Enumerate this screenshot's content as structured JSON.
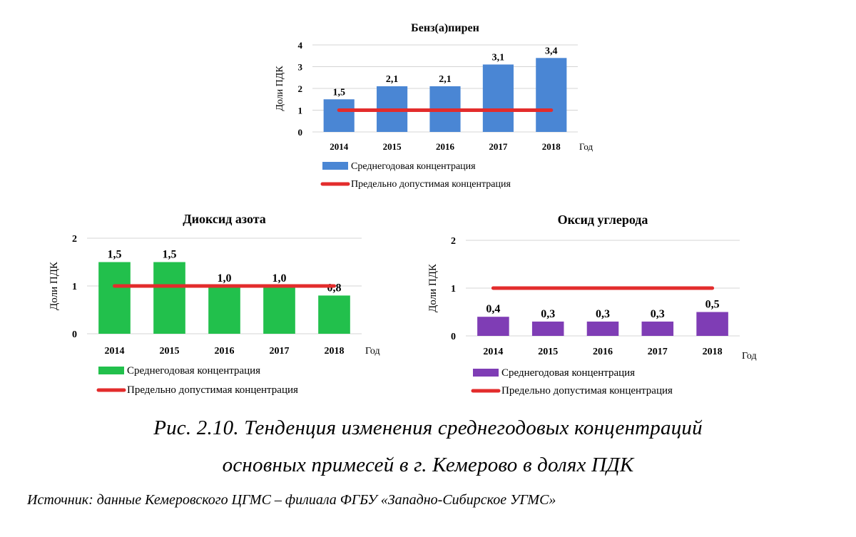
{
  "chart_data": [
    {
      "type": "bar",
      "title": "Бенз(а)пирен",
      "ylabel": "Доли ПДК",
      "xlabel": "Год",
      "categories": [
        "2014",
        "2015",
        "2016",
        "2017",
        "2018"
      ],
      "series": [
        {
          "name": "Среднегодовая концентрация",
          "values": [
            1.5,
            2.1,
            2.1,
            3.1,
            3.4
          ],
          "labels": [
            "1,5",
            "2,1",
            "2,1",
            "3,1",
            "3,4"
          ],
          "color": "#4a86d4"
        },
        {
          "name": "Предельно допустимая концентрация",
          "kind": "line",
          "value": 1,
          "color": "#e32c2c"
        }
      ],
      "ylim": [
        0,
        4
      ],
      "yticks": [
        "0",
        "1",
        "2",
        "3",
        "4"
      ],
      "grid": true,
      "legend": "bottom"
    },
    {
      "type": "bar",
      "title": "Диоксид азота",
      "ylabel": "Доли ПДК",
      "xlabel": "Год",
      "categories": [
        "2014",
        "2015",
        "2016",
        "2017",
        "2018"
      ],
      "series": [
        {
          "name": "Среднегодовая концентрация",
          "values": [
            1.5,
            1.5,
            1.0,
            1.0,
            0.8
          ],
          "labels": [
            "1,5",
            "1,5",
            "1,0",
            "1,0",
            "0,8"
          ],
          "color": "#22c04c"
        },
        {
          "name": "Предельно допустимая концентрация",
          "kind": "line",
          "value": 1,
          "color": "#e32c2c"
        }
      ],
      "ylim": [
        0,
        2
      ],
      "yticks": [
        "0",
        "1",
        "2"
      ],
      "grid": true,
      "legend": "bottom"
    },
    {
      "type": "bar",
      "title": "Оксид углерода",
      "ylabel": "Доли ПДК",
      "xlabel": "Год",
      "categories": [
        "2014",
        "2015",
        "2016",
        "2017",
        "2018"
      ],
      "series": [
        {
          "name": "Среднегодовая концентрация",
          "values": [
            0.4,
            0.3,
            0.3,
            0.3,
            0.5
          ],
          "labels": [
            "0,4",
            "0,3",
            "0,3",
            "0,3",
            "0,5"
          ],
          "color": "#7f3db5"
        },
        {
          "name": "Предельно допустимая концентрация",
          "kind": "line",
          "value": 1,
          "color": "#e32c2c"
        }
      ],
      "ylim": [
        0,
        2
      ],
      "yticks": [
        "0",
        "1",
        "2"
      ],
      "grid": true,
      "legend": "bottom"
    }
  ],
  "caption": {
    "line1": "Рис. 2.10. Тенденция изменения среднегодовых концентраций",
    "line2": "основных примесей в г. Кемерово в долях ПДК"
  },
  "source": "Источник: данные Кемеровского ЦГМС – филиала ФГБУ «Западно-Сибирское УГМС»"
}
